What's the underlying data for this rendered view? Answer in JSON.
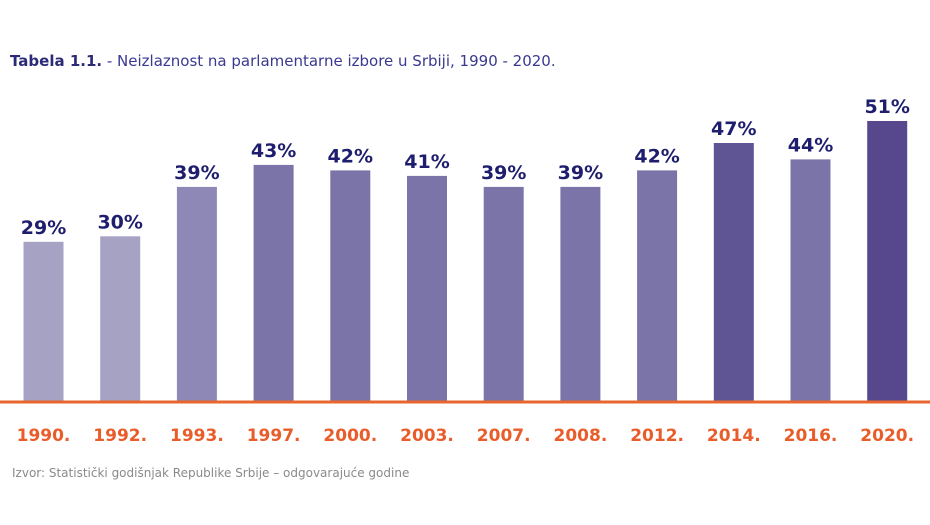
{
  "title": {
    "label": "Tabela 1.1.",
    "text": "- Neizlaznost na parlamentarne izbore u Srbiji, 1990 - 2020."
  },
  "source": "Izvor: Statistički godišnjak Republike Srbije – odgovarajuće godine",
  "colors": {
    "title": "#2b2a78",
    "value_label": "#1f1e6e",
    "category_label": "#e85d2a",
    "baseline": "#e8662e",
    "bar_light": "#a5a2c4",
    "bar_mid": "#7a74a8",
    "bar_dark": "#57488e"
  },
  "chart_data": {
    "type": "bar",
    "categories": [
      "1990.",
      "1992.",
      "1993.",
      "1997.",
      "2000.",
      "2003.",
      "2007.",
      "2008.",
      "2012.",
      "2014.",
      "2016.",
      "2020."
    ],
    "values": [
      29,
      30,
      39,
      43,
      42,
      41,
      39,
      39,
      42,
      47,
      44,
      51
    ],
    "value_labels": [
      "29%",
      "30%",
      "39%",
      "43%",
      "42%",
      "41%",
      "39%",
      "39%",
      "42%",
      "47%",
      "44%",
      "51%"
    ],
    "ylim": [
      0,
      51
    ],
    "grid": false,
    "legend": "none"
  }
}
